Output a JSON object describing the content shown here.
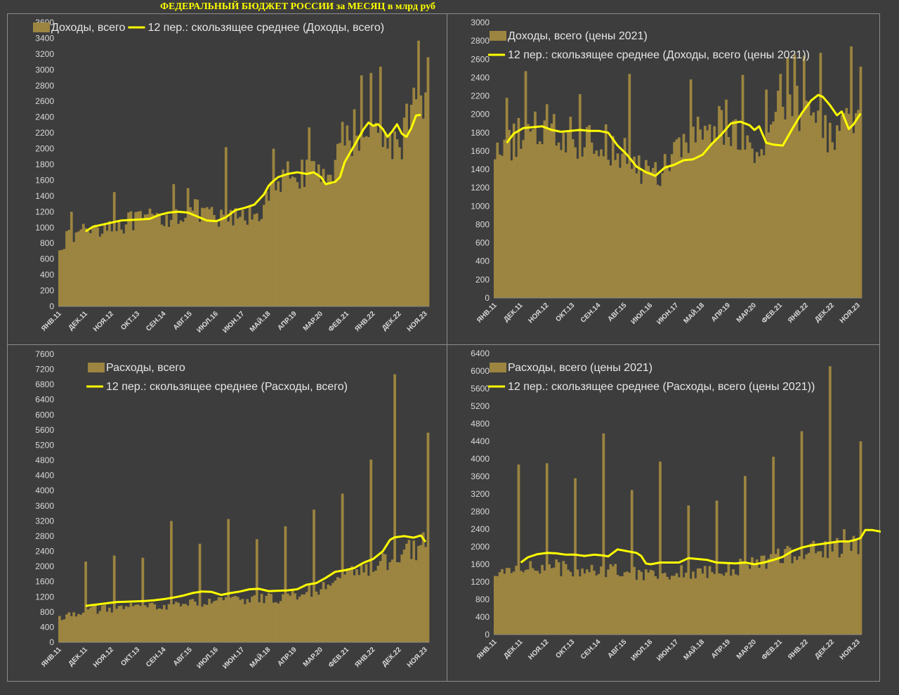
{
  "title": "ФЕДЕРАЛЬНЫЙ БЮДЖЕТ РОССИИ за МЕСЯЦ в млрд руб",
  "colors": {
    "bar": "#9c8540",
    "line": "#ffff00",
    "background": "#3d3d3d",
    "text": "#d9d9d9"
  },
  "x_labels": [
    "ЯНВ.11",
    "ДЕК.11",
    "НОЯ.12",
    "ОКТ.13",
    "СЕН.14",
    "АВГ.15",
    "ИЮЛ.16",
    "ИЮН.17",
    "МАЙ.18",
    "АПР.19",
    "МАР.20",
    "ФЕВ.21",
    "ЯНВ.22",
    "ДЕК.22",
    "НОЯ.23"
  ],
  "chart_data": [
    {
      "type": "bar",
      "legend": {
        "bar": "Доходы, всего",
        "line": "12 пер.: скользящее среднее (Доходы, всего)"
      },
      "ylim": [
        0,
        3600
      ],
      "ytick_step": 200,
      "months": 156,
      "trend": [
        [
          0,
          800
        ],
        [
          11,
          1000
        ],
        [
          23,
          1050
        ],
        [
          35,
          1100
        ],
        [
          47,
          1150
        ],
        [
          55,
          1250
        ],
        [
          67,
          1100
        ],
        [
          79,
          1150
        ],
        [
          85,
          1250
        ],
        [
          91,
          1500
        ],
        [
          99,
          1750
        ],
        [
          107,
          1650
        ],
        [
          113,
          1700
        ],
        [
          121,
          2100
        ],
        [
          131,
          2350
        ],
        [
          137,
          2100
        ],
        [
          143,
          2100
        ],
        [
          149,
          2500
        ],
        [
          155,
          2900
        ]
      ],
      "ma": [
        [
          11,
          950
        ],
        [
          14,
          1010
        ],
        [
          20,
          1050
        ],
        [
          26,
          1090
        ],
        [
          32,
          1100
        ],
        [
          38,
          1110
        ],
        [
          42,
          1160
        ],
        [
          46,
          1190
        ],
        [
          50,
          1200
        ],
        [
          54,
          1190
        ],
        [
          58,
          1140
        ],
        [
          62,
          1090
        ],
        [
          66,
          1080
        ],
        [
          70,
          1130
        ],
        [
          74,
          1220
        ],
        [
          78,
          1250
        ],
        [
          82,
          1290
        ],
        [
          86,
          1420
        ],
        [
          88,
          1530
        ],
        [
          90,
          1590
        ],
        [
          92,
          1640
        ],
        [
          96,
          1680
        ],
        [
          100,
          1700
        ],
        [
          104,
          1680
        ],
        [
          107,
          1700
        ],
        [
          110,
          1640
        ],
        [
          112,
          1550
        ],
        [
          116,
          1580
        ],
        [
          118,
          1640
        ],
        [
          120,
          1830
        ],
        [
          124,
          2040
        ],
        [
          128,
          2250
        ],
        [
          130,
          2330
        ],
        [
          132,
          2290
        ],
        [
          134,
          2310
        ],
        [
          136,
          2250
        ],
        [
          138,
          2150
        ],
        [
          140,
          2220
        ],
        [
          142,
          2310
        ],
        [
          144,
          2190
        ],
        [
          146,
          2150
        ],
        [
          148,
          2260
        ],
        [
          150,
          2420
        ],
        [
          152,
          2430
        ]
      ],
      "spikes": [
        [
          5,
          1200
        ],
        [
          23,
          1450
        ],
        [
          48,
          1550
        ],
        [
          54,
          1500
        ],
        [
          70,
          2020
        ],
        [
          90,
          2000
        ],
        [
          105,
          2270
        ],
        [
          119,
          2340
        ],
        [
          124,
          2500
        ],
        [
          127,
          2930
        ],
        [
          131,
          2960
        ],
        [
          135,
          3040
        ],
        [
          146,
          2570
        ],
        [
          151,
          3370
        ],
        [
          155,
          3160
        ]
      ]
    },
    {
      "type": "bar",
      "legend": {
        "bar": "Доходы, всего (цены 2021)",
        "line": "12 пер.: скользящее среднее (Доходы, всего (цены 2021))"
      },
      "ylim": [
        0,
        3000
      ],
      "ytick_step": 200,
      "months": 156,
      "trend": [
        [
          0,
          1500
        ],
        [
          11,
          1800
        ],
        [
          23,
          1800
        ],
        [
          35,
          1750
        ],
        [
          47,
          1700
        ],
        [
          55,
          1600
        ],
        [
          63,
          1400
        ],
        [
          67,
          1300
        ],
        [
          77,
          1600
        ],
        [
          91,
          1900
        ],
        [
          103,
          1800
        ],
        [
          113,
          1650
        ],
        [
          121,
          2100
        ],
        [
          131,
          2100
        ],
        [
          137,
          1900
        ],
        [
          143,
          1800
        ],
        [
          155,
          2000
        ]
      ],
      "ma": [
        [
          5,
          1690
        ],
        [
          8,
          1790
        ],
        [
          12,
          1850
        ],
        [
          16,
          1860
        ],
        [
          20,
          1870
        ],
        [
          24,
          1830
        ],
        [
          28,
          1810
        ],
        [
          32,
          1820
        ],
        [
          36,
          1830
        ],
        [
          40,
          1820
        ],
        [
          44,
          1820
        ],
        [
          48,
          1800
        ],
        [
          52,
          1660
        ],
        [
          56,
          1560
        ],
        [
          60,
          1430
        ],
        [
          64,
          1370
        ],
        [
          68,
          1330
        ],
        [
          72,
          1420
        ],
        [
          76,
          1450
        ],
        [
          80,
          1500
        ],
        [
          84,
          1510
        ],
        [
          88,
          1560
        ],
        [
          92,
          1680
        ],
        [
          96,
          1780
        ],
        [
          100,
          1900
        ],
        [
          104,
          1920
        ],
        [
          108,
          1880
        ],
        [
          110,
          1830
        ],
        [
          112,
          1870
        ],
        [
          115,
          1690
        ],
        [
          118,
          1670
        ],
        [
          122,
          1660
        ],
        [
          126,
          1840
        ],
        [
          130,
          2010
        ],
        [
          134,
          2150
        ],
        [
          137,
          2210
        ],
        [
          139,
          2190
        ],
        [
          142,
          2100
        ],
        [
          145,
          1990
        ],
        [
          147,
          2030
        ],
        [
          150,
          1840
        ],
        [
          152,
          1890
        ],
        [
          155,
          2010
        ]
      ],
      "spikes": [
        [
          0,
          1510
        ],
        [
          5,
          2180
        ],
        [
          10,
          1960
        ],
        [
          13,
          2470
        ],
        [
          17,
          2030
        ],
        [
          22,
          2110
        ],
        [
          36,
          2220
        ],
        [
          47,
          1890
        ],
        [
          57,
          2440
        ],
        [
          83,
          2380
        ],
        [
          98,
          2160
        ],
        [
          105,
          2430
        ],
        [
          115,
          2270
        ],
        [
          121,
          2440
        ],
        [
          124,
          2620
        ],
        [
          127,
          2650
        ],
        [
          131,
          2640
        ],
        [
          138,
          2670
        ],
        [
          151,
          2740
        ],
        [
          155,
          2520
        ]
      ]
    },
    {
      "type": "bar",
      "legend": {
        "bar": "Расходы, всего",
        "line": "12 пер.: скользящее среднее (Расходы, всего)"
      },
      "ylim": [
        0,
        7600
      ],
      "ytick_step": 400,
      "months": 156,
      "trend": [
        [
          0,
          650
        ],
        [
          11,
          850
        ],
        [
          23,
          900
        ],
        [
          35,
          950
        ],
        [
          47,
          1000
        ],
        [
          59,
          1050
        ],
        [
          71,
          1100
        ],
        [
          83,
          1150
        ],
        [
          95,
          1200
        ],
        [
          107,
          1400
        ],
        [
          119,
          1700
        ],
        [
          131,
          2000
        ],
        [
          143,
          2300
        ],
        [
          155,
          2500
        ]
      ],
      "ma": [
        [
          11,
          960
        ],
        [
          16,
          1000
        ],
        [
          20,
          1030
        ],
        [
          24,
          1060
        ],
        [
          28,
          1070
        ],
        [
          32,
          1080
        ],
        [
          36,
          1090
        ],
        [
          40,
          1110
        ],
        [
          44,
          1140
        ],
        [
          48,
          1180
        ],
        [
          52,
          1230
        ],
        [
          56,
          1300
        ],
        [
          60,
          1340
        ],
        [
          64,
          1330
        ],
        [
          68,
          1250
        ],
        [
          72,
          1300
        ],
        [
          76,
          1340
        ],
        [
          80,
          1400
        ],
        [
          84,
          1410
        ],
        [
          88,
          1350
        ],
        [
          92,
          1360
        ],
        [
          96,
          1370
        ],
        [
          100,
          1400
        ],
        [
          104,
          1520
        ],
        [
          108,
          1560
        ],
        [
          112,
          1700
        ],
        [
          116,
          1860
        ],
        [
          120,
          1900
        ],
        [
          124,
          1960
        ],
        [
          128,
          2100
        ],
        [
          132,
          2200
        ],
        [
          136,
          2400
        ],
        [
          139,
          2700
        ],
        [
          141,
          2770
        ],
        [
          145,
          2800
        ],
        [
          149,
          2760
        ],
        [
          152,
          2820
        ],
        [
          154,
          2650
        ]
      ],
      "spikes": [
        [
          11,
          2130
        ],
        [
          23,
          2290
        ],
        [
          35,
          2230
        ],
        [
          47,
          3200
        ],
        [
          59,
          2600
        ],
        [
          71,
          3250
        ],
        [
          83,
          2720
        ],
        [
          95,
          3060
        ],
        [
          107,
          3500
        ],
        [
          119,
          3920
        ],
        [
          131,
          4820
        ],
        [
          141,
          7070
        ],
        [
          147,
          2700
        ],
        [
          153,
          2900
        ],
        [
          155,
          5530
        ]
      ]
    },
    {
      "type": "bar",
      "legend": {
        "bar": "Расходы, всего (цены 2021)",
        "line": "12 пер.: скользящее среднее (Расходы, всего (цены 2021))"
      },
      "ylim": [
        0,
        6400
      ],
      "ytick_step": 400,
      "months": 156,
      "trend": [
        [
          0,
          1300
        ],
        [
          11,
          1600
        ],
        [
          23,
          1550
        ],
        [
          35,
          1500
        ],
        [
          47,
          1500
        ],
        [
          59,
          1450
        ],
        [
          71,
          1400
        ],
        [
          83,
          1450
        ],
        [
          95,
          1400
        ],
        [
          107,
          1600
        ],
        [
          119,
          1800
        ],
        [
          131,
          1900
        ],
        [
          143,
          2000
        ],
        [
          155,
          2100
        ]
      ],
      "ma": [
        [
          11,
          1640
        ],
        [
          14,
          1760
        ],
        [
          18,
          1830
        ],
        [
          22,
          1860
        ],
        [
          26,
          1850
        ],
        [
          30,
          1820
        ],
        [
          34,
          1820
        ],
        [
          38,
          1790
        ],
        [
          42,
          1820
        ],
        [
          46,
          1800
        ],
        [
          48,
          1780
        ],
        [
          50,
          1860
        ],
        [
          52,
          1940
        ],
        [
          56,
          1900
        ],
        [
          60,
          1860
        ],
        [
          62,
          1790
        ],
        [
          64,
          1620
        ],
        [
          66,
          1600
        ],
        [
          70,
          1640
        ],
        [
          74,
          1640
        ],
        [
          78,
          1640
        ],
        [
          82,
          1740
        ],
        [
          86,
          1720
        ],
        [
          90,
          1700
        ],
        [
          94,
          1640
        ],
        [
          98,
          1630
        ],
        [
          102,
          1620
        ],
        [
          106,
          1640
        ],
        [
          110,
          1600
        ],
        [
          114,
          1640
        ],
        [
          118,
          1700
        ],
        [
          122,
          1770
        ],
        [
          126,
          1900
        ],
        [
          130,
          1980
        ],
        [
          134,
          2030
        ],
        [
          138,
          2060
        ],
        [
          142,
          2090
        ],
        [
          146,
          2120
        ],
        [
          150,
          2120
        ],
        [
          153,
          2160
        ],
        [
          155,
          2200
        ],
        [
          157,
          2380
        ],
        [
          160,
          2380
        ],
        [
          164,
          2340
        ],
        [
          168,
          2370
        ],
        [
          170,
          2230
        ]
      ],
      "spikes": [
        [
          10,
          3870
        ],
        [
          22,
          3900
        ],
        [
          34,
          3560
        ],
        [
          46,
          4580
        ],
        [
          58,
          3290
        ],
        [
          70,
          3940
        ],
        [
          82,
          2940
        ],
        [
          94,
          3050
        ],
        [
          106,
          3610
        ],
        [
          118,
          4050
        ],
        [
          130,
          4630
        ],
        [
          142,
          6110
        ],
        [
          148,
          2400
        ],
        [
          155,
          4400
        ]
      ]
    }
  ]
}
